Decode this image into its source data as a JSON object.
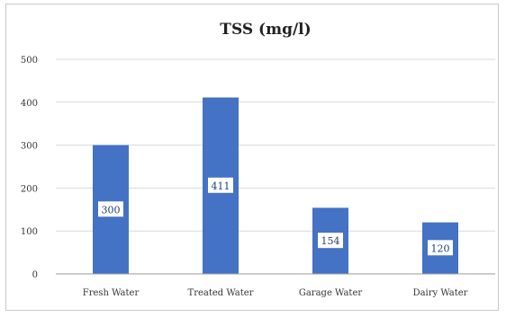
{
  "chart_data": {
    "type": "bar",
    "title": "TSS (mg/l)",
    "categories": [
      "Fresh Water",
      "Treated Water",
      "Garage Water",
      "Dairy Water"
    ],
    "values": [
      300,
      411,
      154,
      120
    ],
    "data_labels": [
      "300",
      "411",
      "154",
      "120"
    ],
    "ylim": [
      0,
      500
    ],
    "yticks": [
      "0",
      "100",
      "200",
      "300",
      "400",
      "500"
    ],
    "grid": true,
    "legend": "none",
    "bar_color": "#4472c4",
    "xlabel": "",
    "ylabel": ""
  }
}
